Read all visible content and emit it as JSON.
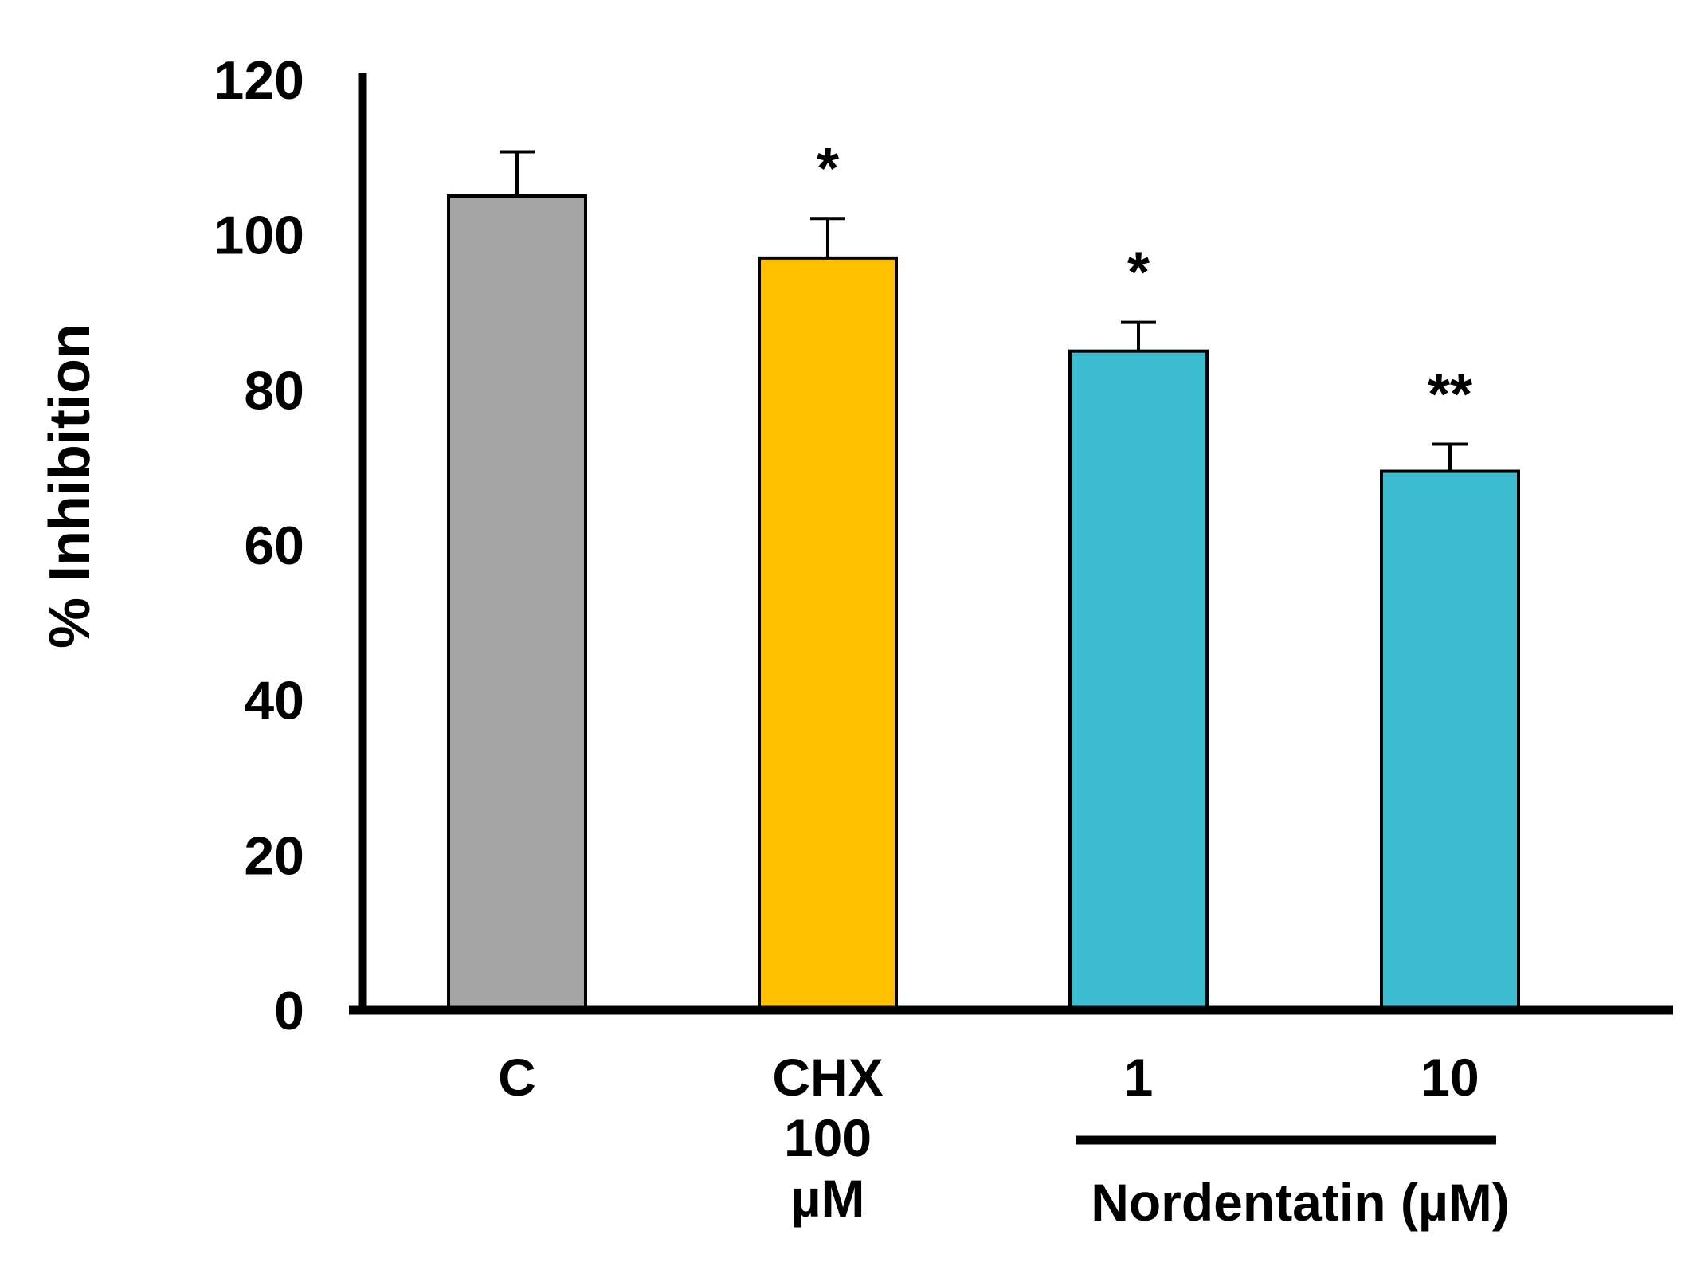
{
  "chart_data": {
    "type": "bar",
    "title": "",
    "xlabel": "",
    "ylabel": "% Inhibition",
    "ylim": [
      0,
      120
    ],
    "yticks": [
      "0",
      "20",
      "40",
      "60",
      "80",
      "100",
      "120"
    ],
    "grid": false,
    "categories": [
      "C",
      "CHX 100 µM",
      "1",
      "10"
    ],
    "category_label_lines": [
      [
        "C"
      ],
      [
        "CHX",
        "100",
        "µM"
      ],
      [
        "1"
      ],
      [
        "10"
      ]
    ],
    "values": [
      105,
      97,
      85,
      69.5
    ],
    "errors": [
      5.7,
      5.1,
      3.7,
      3.5
    ],
    "significance": [
      "",
      "*",
      "*",
      "**"
    ],
    "bar_colors": [
      "#a6a6a6",
      "#ffc000",
      "#3dbdcf",
      "#3dbdcf"
    ],
    "group_label": "Nordentatin (µM)"
  }
}
